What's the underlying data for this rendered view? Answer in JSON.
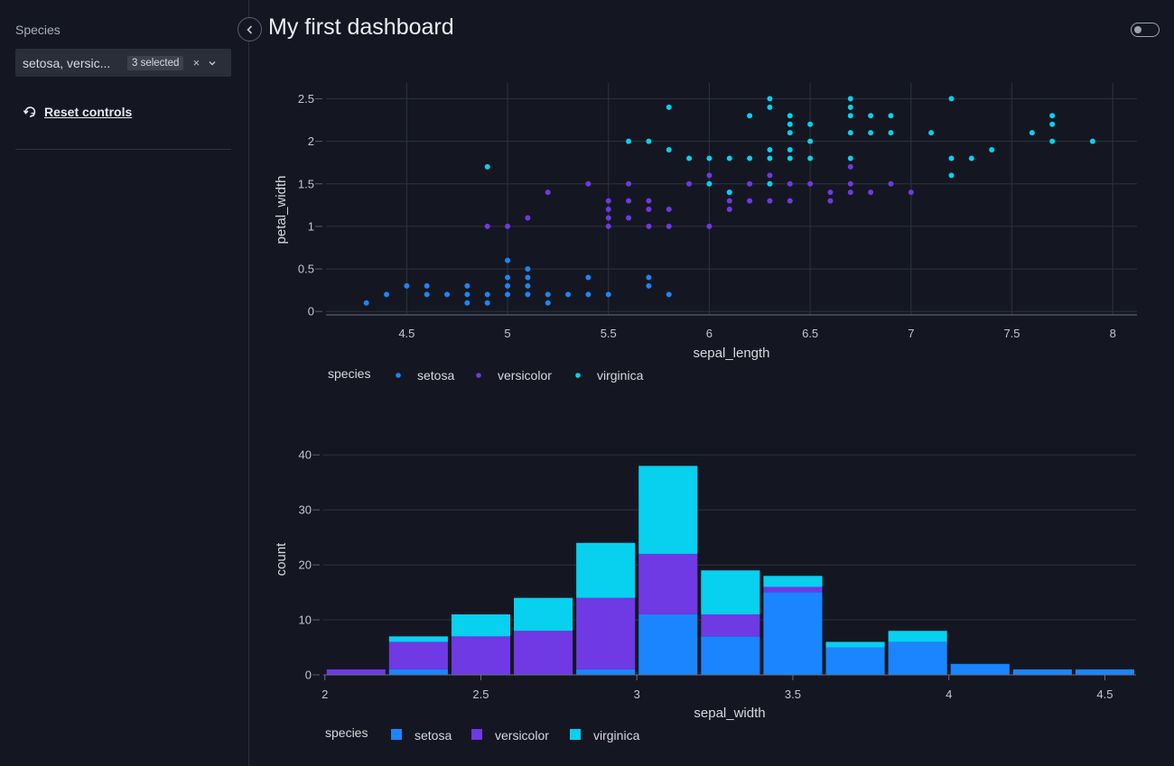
{
  "sidebar": {
    "filter_label": "Species",
    "dropdown": {
      "value": "setosa, versic...",
      "badge": "3 selected",
      "clear": "×"
    },
    "reset_label": "Reset controls"
  },
  "header": {
    "title": "My first dashboard"
  },
  "icons": {
    "collapse": "chevron-left-icon",
    "reset": "reset-icon",
    "theme": "toggle-switch"
  },
  "colors": {
    "setosa": "#1a85ff",
    "versicolor": "#6f39e3",
    "virginica": "#08d0ef",
    "background": "#141721"
  },
  "chart_data": [
    {
      "type": "scatter",
      "xlabel": "sepal_length",
      "ylabel": "petal_width",
      "xlim": [
        4.1,
        8.12
      ],
      "ylim": [
        -0.04,
        2.6
      ],
      "xticks": [
        4.5,
        5,
        5.5,
        6,
        6.5,
        7,
        7.5,
        8
      ],
      "xtick_labels": [
        "4.5",
        "5",
        "5.5",
        "6",
        "6.5",
        "7",
        "7.5",
        "8"
      ],
      "yticks": [
        0,
        0.5,
        1,
        1.5,
        2,
        2.5
      ],
      "ytick_labels": [
        "0",
        "0.5",
        "1",
        "1.5",
        "2",
        "2.5"
      ],
      "grid": true,
      "legend_title": "species",
      "legend_position": "bottom-left",
      "series": [
        {
          "name": "setosa",
          "points": [
            [
              4.3,
              0.1
            ],
            [
              4.4,
              0.2
            ],
            [
              4.5,
              0.3
            ],
            [
              4.6,
              0.2
            ],
            [
              4.6,
              0.3
            ],
            [
              4.7,
              0.2
            ],
            [
              4.8,
              0.1
            ],
            [
              4.8,
              0.2
            ],
            [
              4.8,
              0.3
            ],
            [
              4.9,
              0.1
            ],
            [
              4.9,
              0.2
            ],
            [
              5.0,
              0.2
            ],
            [
              5.0,
              0.3
            ],
            [
              5.0,
              0.4
            ],
            [
              5.0,
              0.6
            ],
            [
              5.1,
              0.2
            ],
            [
              5.1,
              0.3
            ],
            [
              5.1,
              0.4
            ],
            [
              5.1,
              0.5
            ],
            [
              5.2,
              0.1
            ],
            [
              5.2,
              0.2
            ],
            [
              5.3,
              0.2
            ],
            [
              5.4,
              0.2
            ],
            [
              5.4,
              0.4
            ],
            [
              5.5,
              0.2
            ],
            [
              5.7,
              0.3
            ],
            [
              5.7,
              0.4
            ],
            [
              5.8,
              0.2
            ]
          ]
        },
        {
          "name": "versicolor",
          "points": [
            [
              4.9,
              1.0
            ],
            [
              5.0,
              1.0
            ],
            [
              5.1,
              1.1
            ],
            [
              5.2,
              1.4
            ],
            [
              5.4,
              1.5
            ],
            [
              5.5,
              1.0
            ],
            [
              5.5,
              1.1
            ],
            [
              5.5,
              1.2
            ],
            [
              5.5,
              1.3
            ],
            [
              5.6,
              1.1
            ],
            [
              5.6,
              1.3
            ],
            [
              5.6,
              1.5
            ],
            [
              5.7,
              1.0
            ],
            [
              5.7,
              1.2
            ],
            [
              5.7,
              1.3
            ],
            [
              5.8,
              1.0
            ],
            [
              5.8,
              1.2
            ],
            [
              5.9,
              1.5
            ],
            [
              6.0,
              1.0
            ],
            [
              6.0,
              1.5
            ],
            [
              6.0,
              1.6
            ],
            [
              6.1,
              1.2
            ],
            [
              6.1,
              1.3
            ],
            [
              6.1,
              1.4
            ],
            [
              6.2,
              1.3
            ],
            [
              6.2,
              1.5
            ],
            [
              6.3,
              1.3
            ],
            [
              6.3,
              1.5
            ],
            [
              6.3,
              1.6
            ],
            [
              6.4,
              1.3
            ],
            [
              6.4,
              1.5
            ],
            [
              6.5,
              1.5
            ],
            [
              6.6,
              1.3
            ],
            [
              6.6,
              1.4
            ],
            [
              6.7,
              1.4
            ],
            [
              6.7,
              1.5
            ],
            [
              6.7,
              1.7
            ],
            [
              6.8,
              1.4
            ],
            [
              6.9,
              1.5
            ],
            [
              7.0,
              1.4
            ]
          ]
        },
        {
          "name": "virginica",
          "points": [
            [
              4.9,
              1.7
            ],
            [
              5.6,
              2.0
            ],
            [
              5.7,
              2.0
            ],
            [
              5.8,
              1.9
            ],
            [
              5.8,
              2.4
            ],
            [
              5.9,
              1.8
            ],
            [
              6.0,
              1.5
            ],
            [
              6.0,
              1.8
            ],
            [
              6.1,
              1.4
            ],
            [
              6.1,
              1.8
            ],
            [
              6.2,
              1.8
            ],
            [
              6.2,
              2.3
            ],
            [
              6.3,
              1.5
            ],
            [
              6.3,
              1.8
            ],
            [
              6.3,
              1.9
            ],
            [
              6.3,
              2.4
            ],
            [
              6.3,
              2.5
            ],
            [
              6.4,
              1.8
            ],
            [
              6.4,
              1.9
            ],
            [
              6.4,
              2.1
            ],
            [
              6.4,
              2.2
            ],
            [
              6.4,
              2.3
            ],
            [
              6.5,
              1.8
            ],
            [
              6.5,
              2.0
            ],
            [
              6.5,
              2.2
            ],
            [
              6.7,
              1.8
            ],
            [
              6.7,
              2.1
            ],
            [
              6.7,
              2.3
            ],
            [
              6.7,
              2.4
            ],
            [
              6.7,
              2.5
            ],
            [
              6.8,
              2.1
            ],
            [
              6.8,
              2.3
            ],
            [
              6.9,
              2.1
            ],
            [
              6.9,
              2.3
            ],
            [
              7.1,
              2.1
            ],
            [
              7.2,
              1.6
            ],
            [
              7.2,
              1.8
            ],
            [
              7.2,
              2.5
            ],
            [
              7.3,
              1.8
            ],
            [
              7.4,
              1.9
            ],
            [
              7.6,
              2.1
            ],
            [
              7.7,
              2.0
            ],
            [
              7.7,
              2.2
            ],
            [
              7.7,
              2.3
            ],
            [
              7.9,
              2.0
            ]
          ]
        }
      ]
    },
    {
      "type": "bar",
      "stacked": true,
      "xlabel": "sepal_width",
      "ylabel": "count",
      "xlim": [
        1.995,
        4.6
      ],
      "ylim": [
        0,
        42
      ],
      "xticks": [
        2,
        2.5,
        3,
        3.5,
        4,
        4.5
      ],
      "xtick_labels": [
        "2",
        "2.5",
        "3",
        "3.5",
        "4",
        "4.5"
      ],
      "yticks": [
        0,
        10,
        20,
        30,
        40
      ],
      "ytick_labels": [
        "0",
        "10",
        "20",
        "30",
        "40"
      ],
      "grid": true,
      "legend_title": "species",
      "legend_position": "bottom-left",
      "bins": [
        [
          2.0,
          2.2
        ],
        [
          2.2,
          2.4
        ],
        [
          2.4,
          2.6
        ],
        [
          2.6,
          2.8
        ],
        [
          2.8,
          3.0
        ],
        [
          3.0,
          3.2
        ],
        [
          3.2,
          3.4
        ],
        [
          3.4,
          3.6
        ],
        [
          3.6,
          3.8
        ],
        [
          3.8,
          4.0
        ],
        [
          4.0,
          4.2
        ],
        [
          4.2,
          4.4
        ],
        [
          4.4,
          4.6
        ]
      ],
      "series": [
        {
          "name": "setosa",
          "values": [
            0,
            1,
            0,
            0,
            1,
            11,
            7,
            15,
            5,
            6,
            2,
            1,
            1
          ]
        },
        {
          "name": "versicolor",
          "values": [
            1,
            5,
            7,
            8,
            13,
            11,
            4,
            1,
            0,
            0,
            0,
            0,
            0
          ]
        },
        {
          "name": "virginica",
          "values": [
            0,
            1,
            4,
            6,
            10,
            16,
            8,
            2,
            1,
            2,
            0,
            0,
            0
          ]
        }
      ]
    }
  ]
}
